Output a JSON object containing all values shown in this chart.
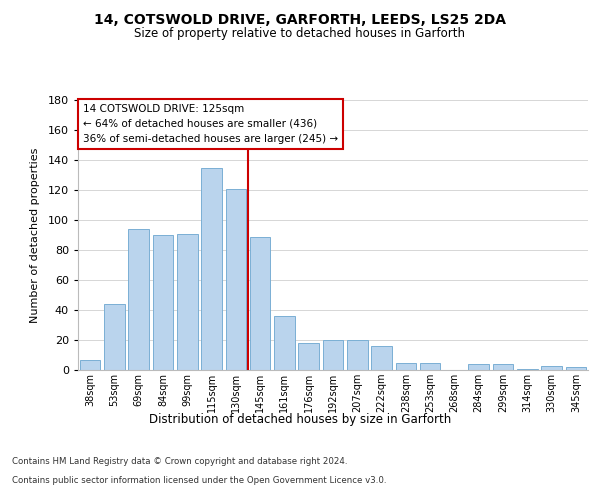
{
  "title_line1": "14, COTSWOLD DRIVE, GARFORTH, LEEDS, LS25 2DA",
  "title_line2": "Size of property relative to detached houses in Garforth",
  "xlabel": "Distribution of detached houses by size in Garforth",
  "ylabel": "Number of detached properties",
  "categories": [
    "38sqm",
    "53sqm",
    "69sqm",
    "84sqm",
    "99sqm",
    "115sqm",
    "130sqm",
    "145sqm",
    "161sqm",
    "176sqm",
    "192sqm",
    "207sqm",
    "222sqm",
    "238sqm",
    "253sqm",
    "268sqm",
    "284sqm",
    "299sqm",
    "314sqm",
    "330sqm",
    "345sqm"
  ],
  "values": [
    7,
    44,
    94,
    90,
    91,
    135,
    121,
    89,
    36,
    18,
    20,
    20,
    16,
    5,
    5,
    0,
    4,
    4,
    1,
    3,
    2
  ],
  "bar_color": "#bad4ed",
  "bar_edge_color": "#7aafd4",
  "background_color": "#ffffff",
  "grid_color": "#d0d0d0",
  "vline_x": 6.5,
  "vline_color": "#cc0000",
  "annotation_text": "14 COTSWOLD DRIVE: 125sqm\n← 64% of detached houses are smaller (436)\n36% of semi-detached houses are larger (245) →",
  "annotation_box_color": "#cc0000",
  "ylim": [
    0,
    180
  ],
  "yticks": [
    0,
    20,
    40,
    60,
    80,
    100,
    120,
    140,
    160,
    180
  ],
  "footer_line1": "Contains HM Land Registry data © Crown copyright and database right 2024.",
  "footer_line2": "Contains public sector information licensed under the Open Government Licence v3.0."
}
